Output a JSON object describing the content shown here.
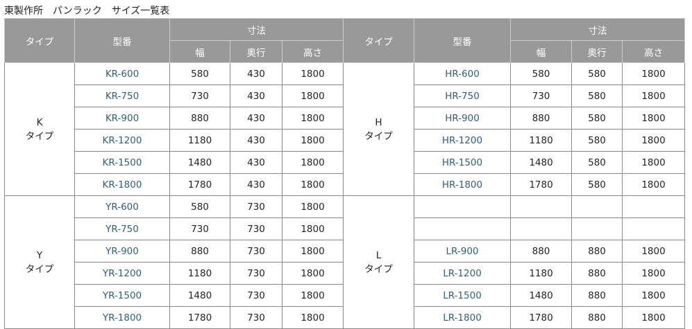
{
  "title": "東製作所　パンラック　サイズ一覧表",
  "headers": {
    "type": "タイプ",
    "model": "型番",
    "dimensions": "寸法",
    "width": "幅",
    "depth": "奥行",
    "height": "高さ"
  },
  "colors": {
    "header_bg": "#999999",
    "model_text": "#2e5f80"
  },
  "groups": [
    {
      "left": {
        "type_letter": "K",
        "type_suffix": "タイプ",
        "rows": [
          [
            "KR-600",
            "580",
            "430",
            "1800"
          ],
          [
            "KR-750",
            "730",
            "430",
            "1800"
          ],
          [
            "KR-900",
            "880",
            "430",
            "1800"
          ],
          [
            "KR-1200",
            "1180",
            "430",
            "1800"
          ],
          [
            "KR-1500",
            "1480",
            "430",
            "1800"
          ],
          [
            "KR-1800",
            "1780",
            "430",
            "1800"
          ]
        ]
      },
      "right": {
        "type_letter": "H",
        "type_suffix": "タイプ",
        "rows": [
          [
            "HR-600",
            "580",
            "580",
            "1800"
          ],
          [
            "HR-750",
            "730",
            "580",
            "1800"
          ],
          [
            "HR-900",
            "880",
            "580",
            "1800"
          ],
          [
            "HR-1200",
            "1180",
            "580",
            "1800"
          ],
          [
            "HR-1500",
            "1480",
            "580",
            "1800"
          ],
          [
            "HR-1800",
            "1780",
            "580",
            "1800"
          ]
        ]
      }
    },
    {
      "left": {
        "type_letter": "Y",
        "type_suffix": "タイプ",
        "rows": [
          [
            "YR-600",
            "580",
            "730",
            "1800"
          ],
          [
            "YR-750",
            "730",
            "730",
            "1800"
          ],
          [
            "YR-900",
            "880",
            "730",
            "1800"
          ],
          [
            "YR-1200",
            "1180",
            "730",
            "1800"
          ],
          [
            "YR-1500",
            "1480",
            "730",
            "1800"
          ],
          [
            "YR-1800",
            "1780",
            "730",
            "1800"
          ]
        ]
      },
      "right": {
        "type_letter": "L",
        "type_suffix": "タイプ",
        "rows": [
          [
            "",
            "",
            "",
            ""
          ],
          [
            "",
            "",
            "",
            ""
          ],
          [
            "LR-900",
            "880",
            "880",
            "1800"
          ],
          [
            "LR-1200",
            "1180",
            "880",
            "1800"
          ],
          [
            "LR-1500",
            "1480",
            "880",
            "1800"
          ],
          [
            "LR-1800",
            "1780",
            "880",
            "1800"
          ]
        ]
      }
    }
  ]
}
